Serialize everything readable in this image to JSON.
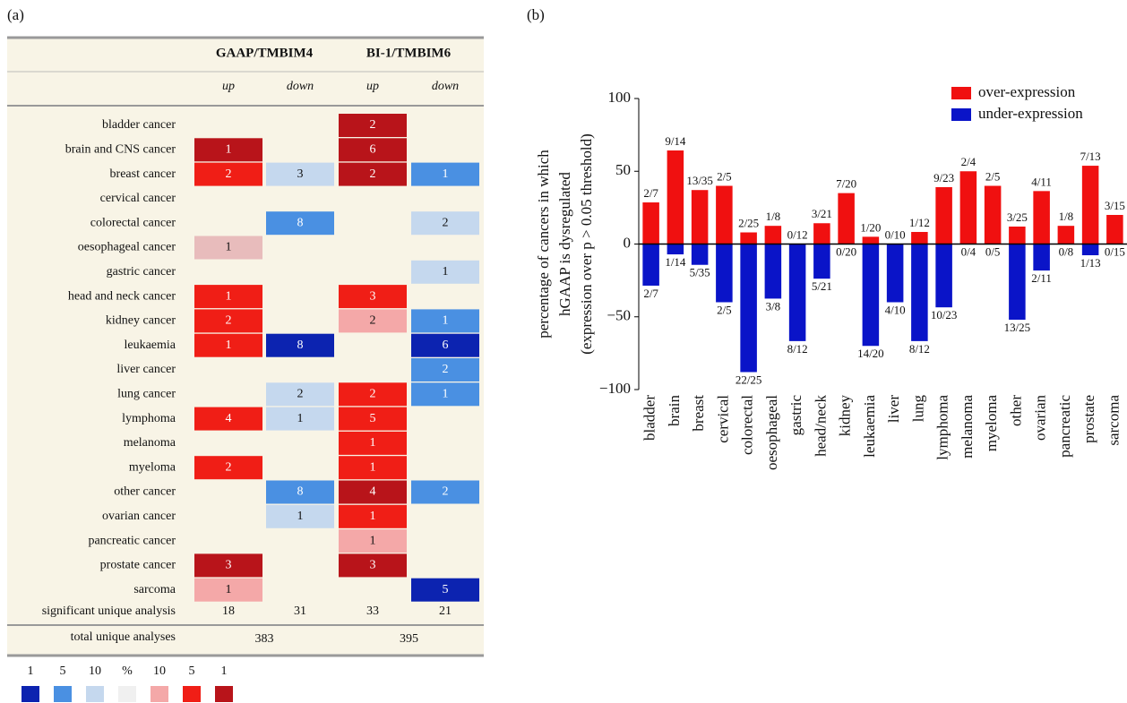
{
  "panel_a": {
    "label": "(a)",
    "groups": [
      "GAAP/TMBIM4",
      "BI-1/TMBIM6"
    ],
    "columns": [
      "up",
      "down",
      "up",
      "down"
    ],
    "rows": [
      {
        "label": "bladder cancer",
        "cells": [
          null,
          null,
          {
            "value": 2,
            "color": "#b8141a"
          },
          null
        ]
      },
      {
        "label": "brain and CNS cancer",
        "cells": [
          {
            "value": 1,
            "color": "#b8141a"
          },
          null,
          {
            "value": 6,
            "color": "#b8141a"
          },
          null
        ]
      },
      {
        "label": "breast cancer",
        "cells": [
          {
            "value": 2,
            "color": "#f01e16"
          },
          {
            "value": 3,
            "color": "#c5d8ee"
          },
          {
            "value": 2,
            "color": "#b8141a"
          },
          {
            "value": 1,
            "color": "#4a90e2"
          }
        ]
      },
      {
        "label": "cervical cancer",
        "cells": [
          null,
          null,
          null,
          null
        ]
      },
      {
        "label": "colorectal cancer",
        "cells": [
          null,
          {
            "value": 8,
            "color": "#4a90e2"
          },
          null,
          {
            "value": 2,
            "color": "#c5d8ee"
          }
        ]
      },
      {
        "label": "oesophageal cancer",
        "cells": [
          {
            "value": 1,
            "color": "#e8bcbc"
          },
          null,
          null,
          null
        ]
      },
      {
        "label": "gastric cancer",
        "cells": [
          null,
          null,
          null,
          {
            "value": 1,
            "color": "#c5d8ee"
          }
        ]
      },
      {
        "label": "head and neck cancer",
        "cells": [
          {
            "value": 1,
            "color": "#f01e16"
          },
          null,
          {
            "value": 3,
            "color": "#f01e16"
          },
          null
        ]
      },
      {
        "label": "kidney cancer",
        "cells": [
          {
            "value": 2,
            "color": "#f01e16"
          },
          null,
          {
            "value": 2,
            "color": "#f4a8a8"
          },
          {
            "value": 1,
            "color": "#4a90e2"
          }
        ]
      },
      {
        "label": "leukaemia",
        "cells": [
          {
            "value": 1,
            "color": "#f01e16"
          },
          {
            "value": 8,
            "color": "#0c23b0"
          },
          null,
          {
            "value": 6,
            "color": "#0c23b0"
          }
        ]
      },
      {
        "label": "liver cancer",
        "cells": [
          null,
          null,
          null,
          {
            "value": 2,
            "color": "#4a90e2"
          }
        ]
      },
      {
        "label": "lung cancer",
        "cells": [
          null,
          {
            "value": 2,
            "color": "#c5d8ee"
          },
          {
            "value": 2,
            "color": "#f01e16"
          },
          {
            "value": 1,
            "color": "#4a90e2"
          }
        ]
      },
      {
        "label": "lymphoma",
        "cells": [
          {
            "value": 4,
            "color": "#f01e16"
          },
          {
            "value": 1,
            "color": "#c5d8ee"
          },
          {
            "value": 5,
            "color": "#f01e16"
          },
          null
        ]
      },
      {
        "label": "melanoma",
        "cells": [
          null,
          null,
          {
            "value": 1,
            "color": "#f01e16"
          },
          null
        ]
      },
      {
        "label": "myeloma",
        "cells": [
          {
            "value": 2,
            "color": "#f01e16"
          },
          null,
          {
            "value": 1,
            "color": "#f01e16"
          },
          null
        ]
      },
      {
        "label": "other cancer",
        "cells": [
          null,
          {
            "value": 8,
            "color": "#4a90e2"
          },
          {
            "value": 4,
            "color": "#b8141a"
          },
          {
            "value": 2,
            "color": "#4a90e2"
          }
        ]
      },
      {
        "label": "ovarian cancer",
        "cells": [
          null,
          {
            "value": 1,
            "color": "#c5d8ee"
          },
          {
            "value": 1,
            "color": "#f01e16"
          },
          null
        ]
      },
      {
        "label": "pancreatic cancer",
        "cells": [
          null,
          null,
          {
            "value": 1,
            "color": "#f4a8a8"
          },
          null
        ]
      },
      {
        "label": "prostate cancer",
        "cells": [
          {
            "value": 3,
            "color": "#b8141a"
          },
          null,
          {
            "value": 3,
            "color": "#b8141a"
          },
          null
        ]
      },
      {
        "label": "sarcoma",
        "cells": [
          {
            "value": 1,
            "color": "#f4a8a8"
          },
          null,
          null,
          {
            "value": 5,
            "color": "#0c23b0"
          }
        ]
      }
    ],
    "significant": {
      "label": "significant unique analysis",
      "values": [
        18,
        31,
        33,
        21
      ]
    },
    "total": {
      "label": "total unique analyses",
      "values": [
        383,
        395
      ]
    },
    "legend": [
      {
        "label": "1",
        "color": "#0c23b0"
      },
      {
        "label": "5",
        "color": "#4a90e2"
      },
      {
        "label": "10",
        "color": "#c5d8ee"
      },
      {
        "label": "%",
        "color": "#f0f0f0"
      },
      {
        "label": "10",
        "color": "#f4a8a8"
      },
      {
        "label": "5",
        "color": "#f01e16"
      },
      {
        "label": "1",
        "color": "#b8141a"
      }
    ]
  },
  "chart_data": {
    "type": "bar",
    "label": "(b)",
    "ylabel": [
      "percentage of cancers in which",
      "hGAAP is dysregulated",
      "(expression over p > 0.05 threshold)"
    ],
    "categories": [
      "bladder",
      "brain",
      "breast",
      "cervical",
      "colorectal",
      "oesophageal",
      "gastric",
      "head/neck",
      "kidney",
      "leukaemia",
      "liver",
      "lung",
      "lymphoma",
      "melanoma",
      "myeloma",
      "other",
      "ovarian",
      "pancreatic",
      "prostate",
      "sarcoma"
    ],
    "series": [
      {
        "name": "over-expression",
        "color": "#f01010",
        "values": [
          28.6,
          64.3,
          37.1,
          40,
          8,
          12.5,
          0,
          14.3,
          35,
          5,
          0,
          8.3,
          39.1,
          50,
          40,
          12,
          36.4,
          12.5,
          53.8,
          20
        ],
        "value_labels": [
          "2/7",
          "9/14",
          "13/35",
          "2/5",
          "2/25",
          "1/8",
          "0/12",
          "3/21",
          "7/20",
          "1/20",
          "0/10",
          "1/12",
          "9/23",
          "2/4",
          "2/5",
          "3/25",
          "4/11",
          "1/8",
          "7/13",
          "3/15"
        ]
      },
      {
        "name": "under-expression",
        "color": "#0a14c8",
        "values": [
          -28.6,
          -7.1,
          -14.3,
          -40,
          -88,
          -37.5,
          -66.7,
          -23.8,
          0,
          -70,
          -40,
          -66.7,
          -43.5,
          0,
          0,
          -52,
          -18.2,
          0,
          -7.7,
          0
        ],
        "value_labels": [
          "2/7",
          "1/14",
          "5/35",
          "2/5",
          "22/25",
          "3/8",
          "8/12",
          "5/21",
          "0/20",
          "14/20",
          "4/10",
          "8/12",
          "10/23",
          "0/4",
          "0/5",
          "13/25",
          "2/11",
          "0/8",
          "1/13",
          "0/15"
        ]
      }
    ],
    "ylim": [
      -100,
      100
    ],
    "yticks": [
      {
        "value": -100,
        "label": "−100"
      },
      {
        "value": -50,
        "label": "−50"
      },
      0,
      50,
      100
    ],
    "legend": "upper right"
  }
}
